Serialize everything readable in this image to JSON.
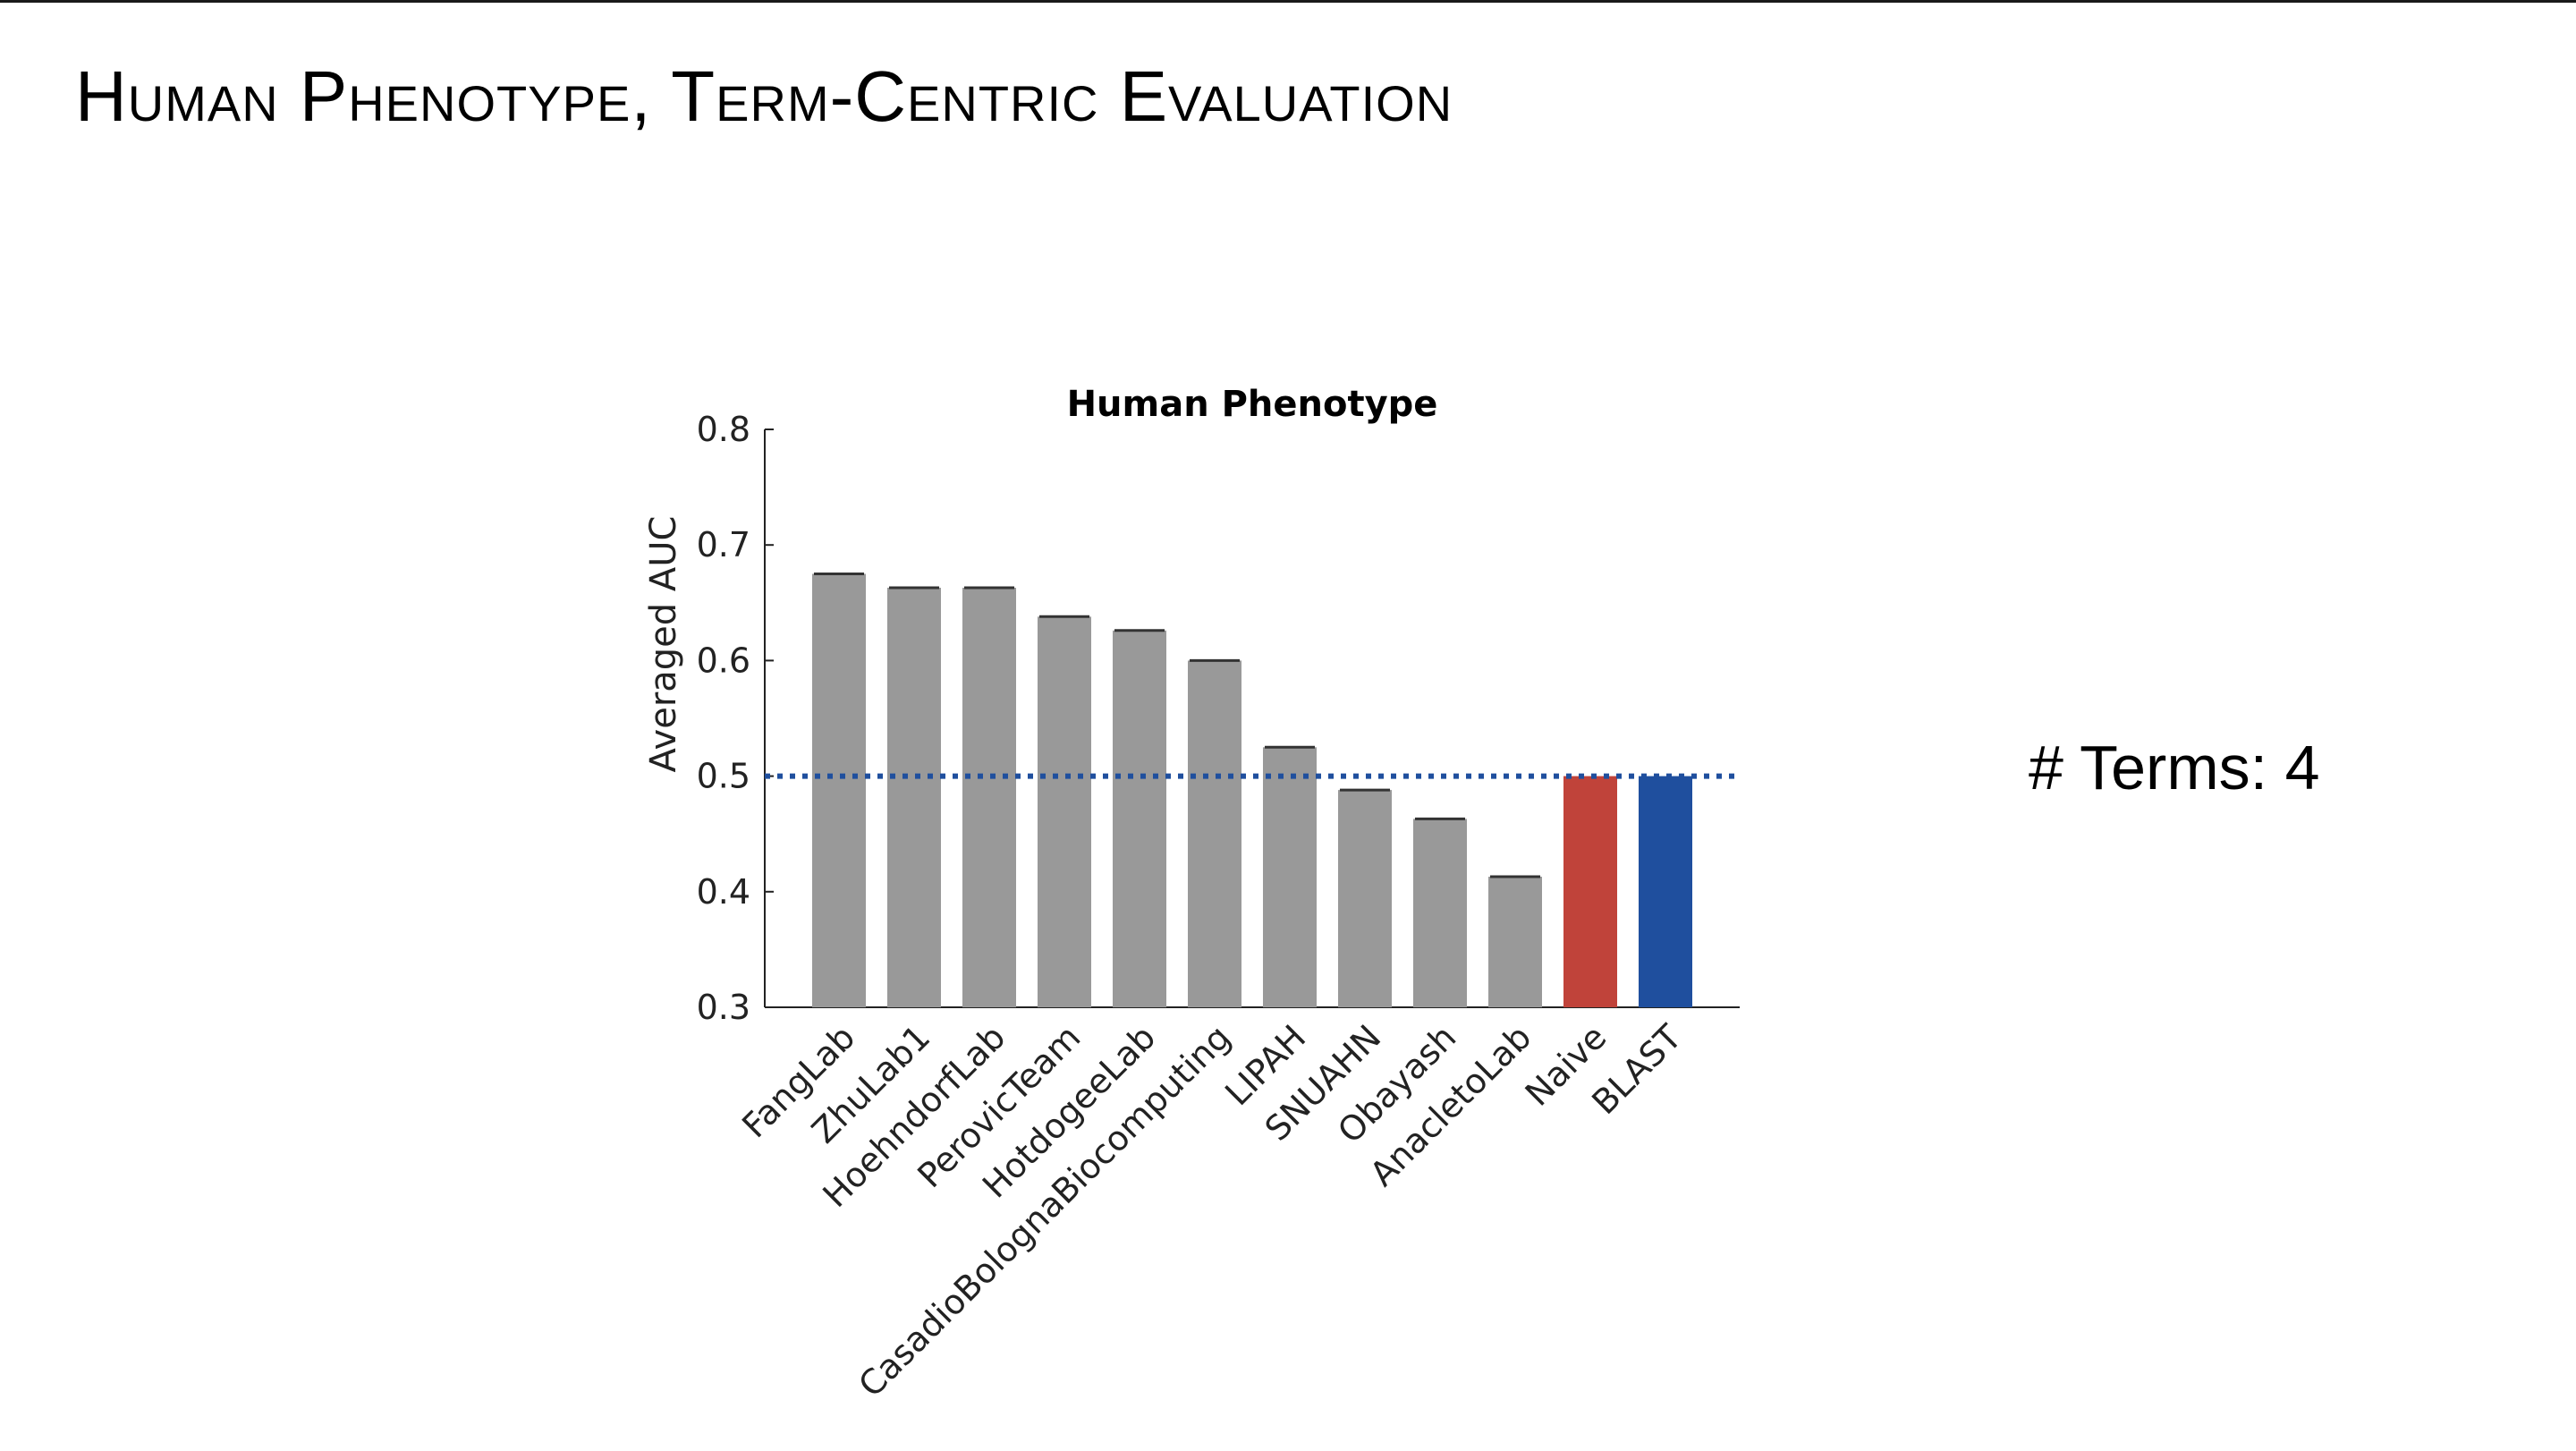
{
  "slide": {
    "title": "Human Phenotype, Term-Centric Evaluation",
    "terms_note": "# Terms: 4"
  },
  "chart_data": {
    "type": "bar",
    "title": "Human Phenotype",
    "xlabel": "",
    "ylabel": "Averaged AUC",
    "ylim": [
      0.3,
      0.8
    ],
    "yticks": [
      "0.3",
      "0.4",
      "0.5",
      "0.6",
      "0.7",
      "0.8"
    ],
    "categories": [
      "FangLab",
      "ZhuLab1",
      "HoehndorfLab",
      "PerovicTeam",
      "HotdogeeLab",
      "CasadioBolognaBiocomputing",
      "LIPAH",
      "SNUAHN",
      "Obayash",
      "AnacletoLab",
      "Naive",
      "BLAST"
    ],
    "values": [
      0.675,
      0.663,
      0.663,
      0.638,
      0.626,
      0.6,
      0.525,
      0.488,
      0.463,
      0.413,
      0.5,
      0.5
    ],
    "bar_colors": [
      "#999999",
      "#999999",
      "#999999",
      "#999999",
      "#999999",
      "#999999",
      "#999999",
      "#999999",
      "#999999",
      "#999999",
      "#c0433a",
      "#1f4f9e"
    ],
    "reference_line": {
      "value": 0.5,
      "style": "dotted",
      "color": "#1f4f9e"
    },
    "grid": false,
    "legend": "none"
  }
}
